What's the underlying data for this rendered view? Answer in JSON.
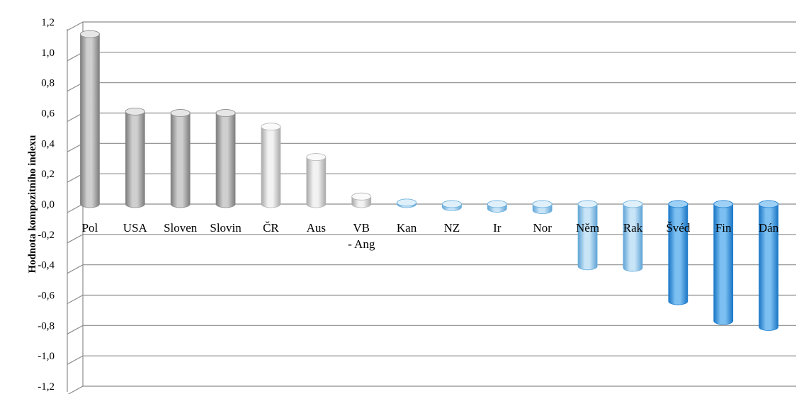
{
  "chart_data": {
    "type": "bar",
    "title": "",
    "xlabel": "",
    "ylabel": "Hodnota kompozitního indexu",
    "ylim": [
      -1.2,
      1.2
    ],
    "ytick_step": 0.2,
    "yticks": [
      "1,2",
      "1,0",
      "0,8",
      "0,6",
      "0,4",
      "0,2",
      "0,0",
      "-0,2",
      "-0,4",
      "-0,6",
      "-0,8",
      "-1,0",
      "-1,2"
    ],
    "grid": true,
    "legend": "none",
    "categories": [
      [
        "Pol"
      ],
      [
        "USA"
      ],
      [
        "Sloven"
      ],
      [
        "Slovin"
      ],
      [
        "ČR"
      ],
      [
        "Aus"
      ],
      [
        "VB",
        "- Ang"
      ],
      [
        "Kan"
      ],
      [
        "NZ"
      ],
      [
        "Ir"
      ],
      [
        "Nor"
      ],
      [
        "Něm"
      ],
      [
        "Rak"
      ],
      [
        "Švéd"
      ],
      [
        "Fin"
      ],
      [
        "Dán"
      ]
    ],
    "values": [
      1.12,
      0.61,
      0.6,
      0.6,
      0.51,
      0.31,
      0.05,
      0.01,
      -0.02,
      -0.03,
      -0.04,
      -0.41,
      -0.42,
      -0.64,
      -0.77,
      -0.81
    ],
    "bar_styles": [
      "dark-gray",
      "dark-gray",
      "dark-gray",
      "dark-gray",
      "light-gray",
      "light-gray",
      "light-gray",
      "light-blue",
      "light-blue",
      "light-blue",
      "light-blue",
      "light-blue",
      "light-blue",
      "blue",
      "blue",
      "blue"
    ],
    "colors": {
      "dark-gray": {
        "edge": "#8a8a8a",
        "mid": "#cfcfcf",
        "dark": "#7c7c7c",
        "top": "#e6e6e6"
      },
      "light-gray": {
        "edge": "#b5b5b5",
        "mid": "#f2f2f2",
        "dark": "#a8a8a8",
        "top": "#fafafa"
      },
      "light-blue": {
        "edge": "#6aaedc",
        "mid": "#c8e4f7",
        "dark": "#5fa4d6",
        "top": "#dff0fb"
      },
      "blue": {
        "edge": "#1d7fd0",
        "mid": "#7cc0f2",
        "dark": "#1b76c4",
        "top": "#9ed0f6"
      },
      "grid": "#8c8c8c"
    }
  }
}
